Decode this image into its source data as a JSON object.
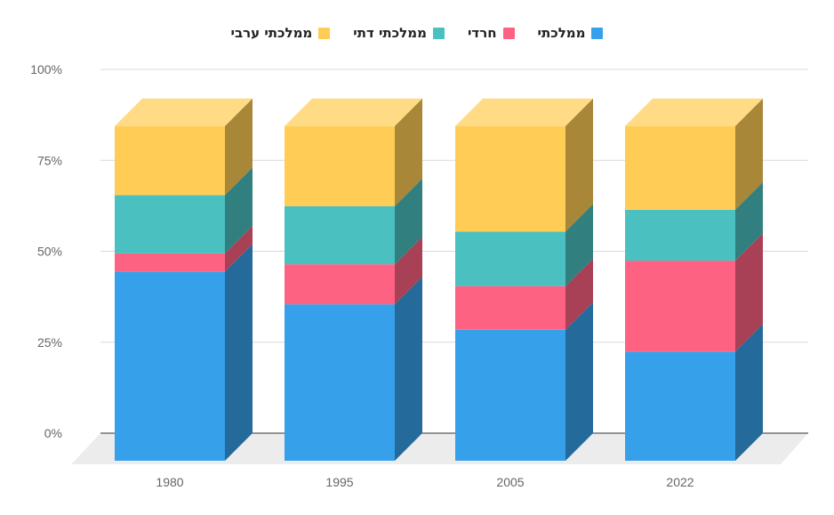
{
  "chart_data": {
    "type": "bar",
    "stacked": true,
    "style": "3d",
    "categories": [
      "1980",
      "1995",
      "2005",
      "2022"
    ],
    "series": [
      {
        "name": "ממלכתי",
        "color": "#36a0ea",
        "values": [
          52,
          43,
          36,
          30
        ]
      },
      {
        "name": "חרדי",
        "color": "#fe6283",
        "values": [
          5,
          11,
          12,
          25
        ]
      },
      {
        "name": "ממלכתי דתי",
        "color": "#4bc0c0",
        "values": [
          16,
          16,
          15,
          14
        ]
      },
      {
        "name": "ממלכתי ערבי",
        "color": "#ffcd56",
        "values": [
          19,
          22,
          29,
          23
        ]
      }
    ],
    "yticks": [
      "0%",
      "25%",
      "50%",
      "75%",
      "100%"
    ],
    "ylim": [
      0,
      100
    ],
    "legend_position": "top",
    "title": "",
    "xlabel": "",
    "ylabel": ""
  }
}
